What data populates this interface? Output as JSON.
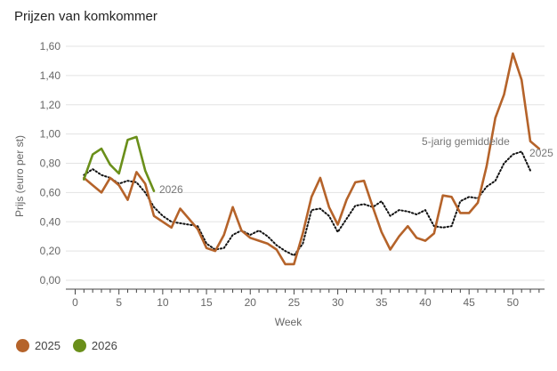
{
  "title": "Prijzen van komkommer",
  "legend": [
    {
      "label": "2025",
      "color": "#b5632a"
    },
    {
      "label": "2026",
      "color": "#6a8f1a"
    }
  ],
  "chart_data": {
    "type": "line",
    "title": "Prijzen van komkommer",
    "xlabel": "Week",
    "ylabel": "Prijs (euro per st)",
    "xlim": [
      0,
      53
    ],
    "ylim": [
      0,
      1.6
    ],
    "x_ticks": [
      0,
      5,
      10,
      15,
      20,
      25,
      30,
      35,
      40,
      45,
      50
    ],
    "y_ticks": [
      0,
      0.2,
      0.4,
      0.6,
      0.8,
      1.0,
      1.2,
      1.4,
      1.6
    ],
    "y_tick_labels": [
      "0,00",
      "0,20",
      "0,40",
      "0,60",
      "0,80",
      "1,00",
      "1,20",
      "1,40",
      "1,60"
    ],
    "grid": "horizontal",
    "series": [
      {
        "name": "2025",
        "color": "#b5632a",
        "style": "solid",
        "x": [
          1,
          2,
          3,
          4,
          5,
          6,
          7,
          8,
          9,
          10,
          11,
          12,
          13,
          14,
          15,
          16,
          17,
          18,
          19,
          20,
          21,
          22,
          23,
          24,
          25,
          26,
          27,
          28,
          29,
          30,
          31,
          32,
          33,
          34,
          35,
          36,
          37,
          38,
          39,
          40,
          41,
          42,
          43,
          44,
          45,
          46,
          47,
          48,
          49,
          50,
          51,
          52,
          53
        ],
        "values": [
          0.7,
          0.65,
          0.6,
          0.7,
          0.65,
          0.55,
          0.74,
          0.66,
          0.44,
          0.4,
          0.36,
          0.49,
          0.42,
          0.35,
          0.22,
          0.2,
          0.31,
          0.5,
          0.34,
          0.29,
          0.27,
          0.25,
          0.21,
          0.11,
          0.11,
          0.32,
          0.57,
          0.7,
          0.5,
          0.38,
          0.55,
          0.67,
          0.68,
          0.5,
          0.33,
          0.21,
          0.3,
          0.37,
          0.29,
          0.27,
          0.32,
          0.58,
          0.57,
          0.46,
          0.46,
          0.53,
          0.78,
          1.11,
          1.27,
          1.55,
          1.37,
          0.95,
          0.9
        ]
      },
      {
        "name": "2026",
        "color": "#6a8f1a",
        "style": "solid",
        "x": [
          1,
          2,
          3,
          4,
          5,
          6,
          7,
          8,
          9
        ],
        "values": [
          0.69,
          0.86,
          0.9,
          0.79,
          0.73,
          0.96,
          0.98,
          0.75,
          0.61
        ]
      },
      {
        "name": "5-jarig gemiddelde",
        "color": "#111111",
        "style": "dotted",
        "x": [
          1,
          2,
          3,
          4,
          5,
          6,
          7,
          8,
          9,
          10,
          11,
          12,
          13,
          14,
          15,
          16,
          17,
          18,
          19,
          20,
          21,
          22,
          23,
          24,
          25,
          26,
          27,
          28,
          29,
          30,
          31,
          32,
          33,
          34,
          35,
          36,
          37,
          38,
          39,
          40,
          41,
          42,
          43,
          44,
          45,
          46,
          47,
          48,
          49,
          50,
          51,
          52
        ],
        "values": [
          0.72,
          0.76,
          0.72,
          0.7,
          0.66,
          0.68,
          0.67,
          0.6,
          0.5,
          0.44,
          0.4,
          0.39,
          0.38,
          0.37,
          0.25,
          0.21,
          0.22,
          0.31,
          0.34,
          0.31,
          0.34,
          0.3,
          0.24,
          0.2,
          0.17,
          0.25,
          0.48,
          0.49,
          0.44,
          0.33,
          0.42,
          0.51,
          0.52,
          0.5,
          0.54,
          0.44,
          0.48,
          0.47,
          0.45,
          0.48,
          0.37,
          0.36,
          0.37,
          0.54,
          0.57,
          0.56,
          0.64,
          0.68,
          0.8,
          0.86,
          0.88,
          0.75
        ]
      }
    ],
    "annotations": [
      {
        "text": "2026",
        "x": 9.6,
        "y": 0.62
      },
      {
        "text": "5-jarig gemiddelde",
        "x": 39.6,
        "y": 0.95
      },
      {
        "text": "2025",
        "x": 51.9,
        "y": 0.87
      }
    ]
  }
}
